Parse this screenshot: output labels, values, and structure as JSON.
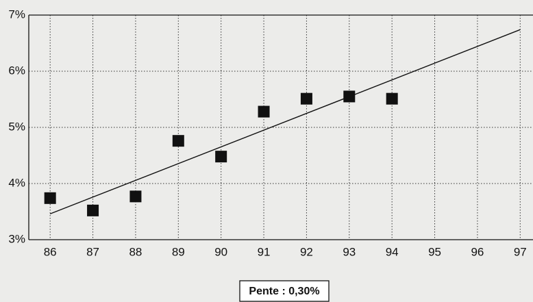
{
  "chart_data": {
    "type": "scatter",
    "series": [
      {
        "color": "#111111",
        "x": [
          86,
          87,
          88,
          89,
          90,
          91,
          92,
          93,
          94
        ],
        "values": [
          3.74,
          3.52,
          3.77,
          4.76,
          4.48,
          5.28,
          5.51,
          5.55,
          5.51
        ]
      }
    ],
    "trend_line": {
      "color": "#111111",
      "x": [
        86,
        97
      ],
      "values": [
        3.46,
        6.74
      ]
    },
    "annotation": "Pente : 0,30%",
    "xlim": [
      85.5,
      97.3
    ],
    "xticks": [
      86,
      87,
      88,
      89,
      90,
      91,
      92,
      93,
      94,
      95,
      96,
      97
    ],
    "ylim": [
      3,
      7
    ],
    "yticks": [
      {
        "value": 3,
        "label": "3%"
      },
      {
        "value": 4,
        "label": "4%"
      },
      {
        "value": 5,
        "label": "5%"
      },
      {
        "value": 6,
        "label": "6%"
      },
      {
        "value": 7,
        "label": "7%"
      }
    ],
    "grid": true
  }
}
